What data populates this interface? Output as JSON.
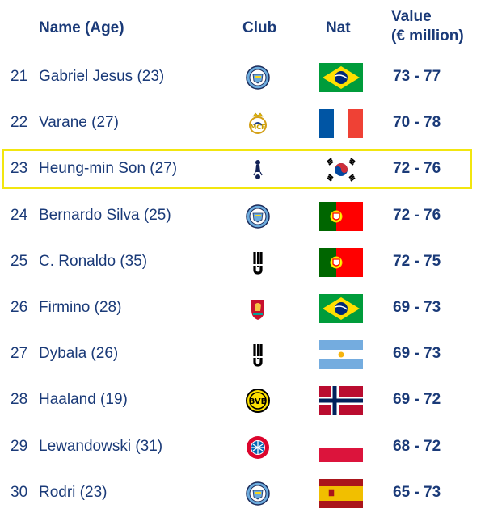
{
  "header": {
    "name_label": "Name (Age)",
    "club_label": "Club",
    "nat_label": "Nat",
    "value_label_line1": "Value",
    "value_label_line2": "(€ million)"
  },
  "colors": {
    "text": "#1a3a78",
    "highlight": "#f2e60f"
  },
  "rows": [
    {
      "rank": "21",
      "name": "Gabriel Jesus (23)",
      "club_icon": "manchester-city-crest-icon",
      "nat_icon": "brazil-flag-icon",
      "value": "73 - 77"
    },
    {
      "rank": "22",
      "name": "Varane (27)",
      "club_icon": "real-madrid-crest-icon",
      "nat_icon": "france-flag-icon",
      "value": "70 - 78"
    },
    {
      "rank": "23",
      "name": "Heung-min Son (27)",
      "club_icon": "tottenham-crest-icon",
      "nat_icon": "south-korea-flag-icon",
      "value": "72 - 76",
      "highlighted": true
    },
    {
      "rank": "24",
      "name": "Bernardo Silva (25)",
      "club_icon": "manchester-city-crest-icon",
      "nat_icon": "portugal-flag-icon",
      "value": "72 - 76"
    },
    {
      "rank": "25",
      "name": "C. Ronaldo (35)",
      "club_icon": "juventus-crest-icon",
      "nat_icon": "portugal-flag-icon",
      "value": "72 - 75"
    },
    {
      "rank": "26",
      "name": "Firmino (28)",
      "club_icon": "liverpool-crest-icon",
      "nat_icon": "brazil-flag-icon",
      "value": "69 - 73"
    },
    {
      "rank": "27",
      "name": "Dybala (26)",
      "club_icon": "juventus-crest-icon",
      "nat_icon": "argentina-flag-icon",
      "value": "69 - 73"
    },
    {
      "rank": "28",
      "name": "Haaland (19)",
      "club_icon": "dortmund-crest-icon",
      "nat_icon": "norway-flag-icon",
      "value": "69 - 72"
    },
    {
      "rank": "29",
      "name": "Lewandowski (31)",
      "club_icon": "bayern-crest-icon",
      "nat_icon": "poland-flag-icon",
      "value": "68 - 72"
    },
    {
      "rank": "30",
      "name": "Rodri (23)",
      "club_icon": "manchester-city-crest-icon",
      "nat_icon": "spain-flag-icon",
      "value": "65 - 73"
    }
  ]
}
